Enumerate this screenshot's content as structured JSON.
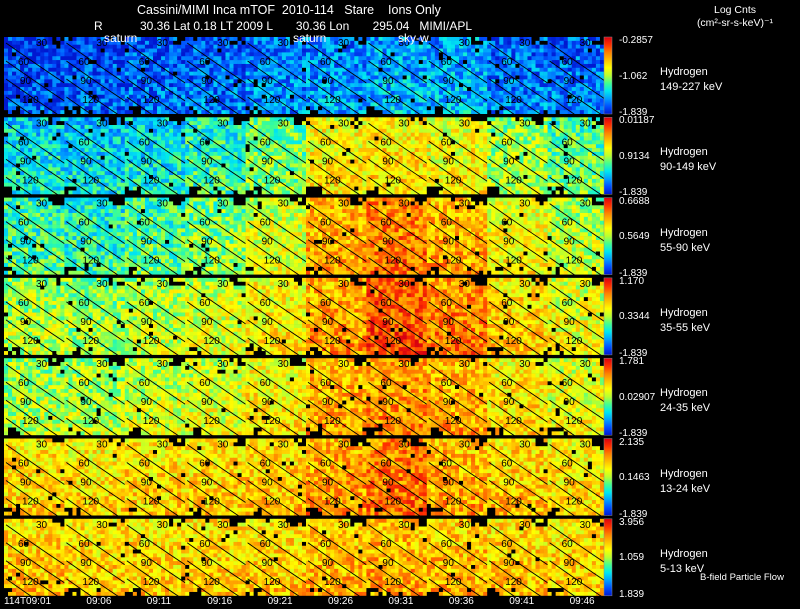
{
  "header": {
    "title": "Cassini/MIMI Inca mTOF  2010-114   Stare    Ions Only",
    "r_label": "R",
    "position_text": "30.36 Lat 0.18 LT 2009 L       30.36 Lon       295.04   MIMI/APL",
    "frame_labels": [
      "saturn",
      "saturn",
      "sky-w"
    ],
    "colorbar_title": [
      "Log Cnts",
      "(cm²-sr-s-keV)⁻¹"
    ]
  },
  "footer_note": "B-field Particle Flow",
  "colors": {
    "background": "#000000",
    "text": "#ffffff",
    "nodata": "#000000",
    "contour": "#000000",
    "colormap": [
      "#0018d0",
      "#0050ff",
      "#00a0ff",
      "#00e8f0",
      "#40ff90",
      "#b8ff30",
      "#ffff00",
      "#ffc000",
      "#ff8000",
      "#ff3000",
      "#d80010"
    ]
  },
  "chart_data": {
    "type": "heatmap",
    "time_labels": [
      "114T09:01",
      "09:06",
      "09:11",
      "09:16",
      "09:21",
      "09:26",
      "09:31",
      "09:36",
      "09:41",
      "09:46"
    ],
    "contour_labels": [
      "30",
      "60",
      "90",
      "120"
    ],
    "panels": [
      {
        "species": "Hydrogen",
        "energy": "149-227 keV",
        "cb_max": "-0.2857",
        "cb_mid": "-1.062",
        "cb_min": "-1.839",
        "levels": [
          0.08,
          0.1,
          0.12,
          0.13,
          0.16,
          0.18,
          0.22,
          0.22,
          0.15,
          0.14
        ]
      },
      {
        "species": "Hydrogen",
        "energy": "90-149 keV",
        "cb_max": "0.01187",
        "cb_mid": "0.9134",
        "cb_min": "-1.839",
        "levels": [
          0.3,
          0.28,
          0.3,
          0.36,
          0.45,
          0.62,
          0.64,
          0.6,
          0.5,
          0.42
        ]
      },
      {
        "species": "Hydrogen",
        "energy": "55-90 keV",
        "cb_max": "0.6688",
        "cb_mid": "0.5649",
        "cb_min": "-1.839",
        "levels": [
          0.38,
          0.35,
          0.4,
          0.46,
          0.56,
          0.72,
          0.8,
          0.72,
          0.6,
          0.52
        ]
      },
      {
        "species": "Hydrogen",
        "energy": "35-55 keV",
        "cb_max": "1.170",
        "cb_mid": "0.3344",
        "cb_min": "-1.839",
        "levels": [
          0.5,
          0.48,
          0.52,
          0.56,
          0.62,
          0.74,
          0.86,
          0.78,
          0.66,
          0.58
        ]
      },
      {
        "species": "Hydrogen",
        "energy": "24-35 keV",
        "cb_max": "1.781",
        "cb_mid": "0.02907",
        "cb_min": "-1.839",
        "levels": [
          0.5,
          0.5,
          0.54,
          0.56,
          0.62,
          0.72,
          0.76,
          0.72,
          0.64,
          0.58
        ]
      },
      {
        "species": "Hydrogen",
        "energy": "13-24 keV",
        "cb_max": "2.135",
        "cb_mid": "0.1463",
        "cb_min": "-1.839",
        "levels": [
          0.66,
          0.64,
          0.66,
          0.66,
          0.68,
          0.74,
          0.8,
          0.72,
          0.68,
          0.64
        ]
      },
      {
        "species": "Hydrogen",
        "energy": "5-13 keV",
        "cb_max": "3.956",
        "cb_mid": "1.059",
        "cb_min": "1.839",
        "levels": [
          0.68,
          0.66,
          0.66,
          0.66,
          0.67,
          0.7,
          0.72,
          0.7,
          0.68,
          0.66
        ]
      }
    ]
  }
}
